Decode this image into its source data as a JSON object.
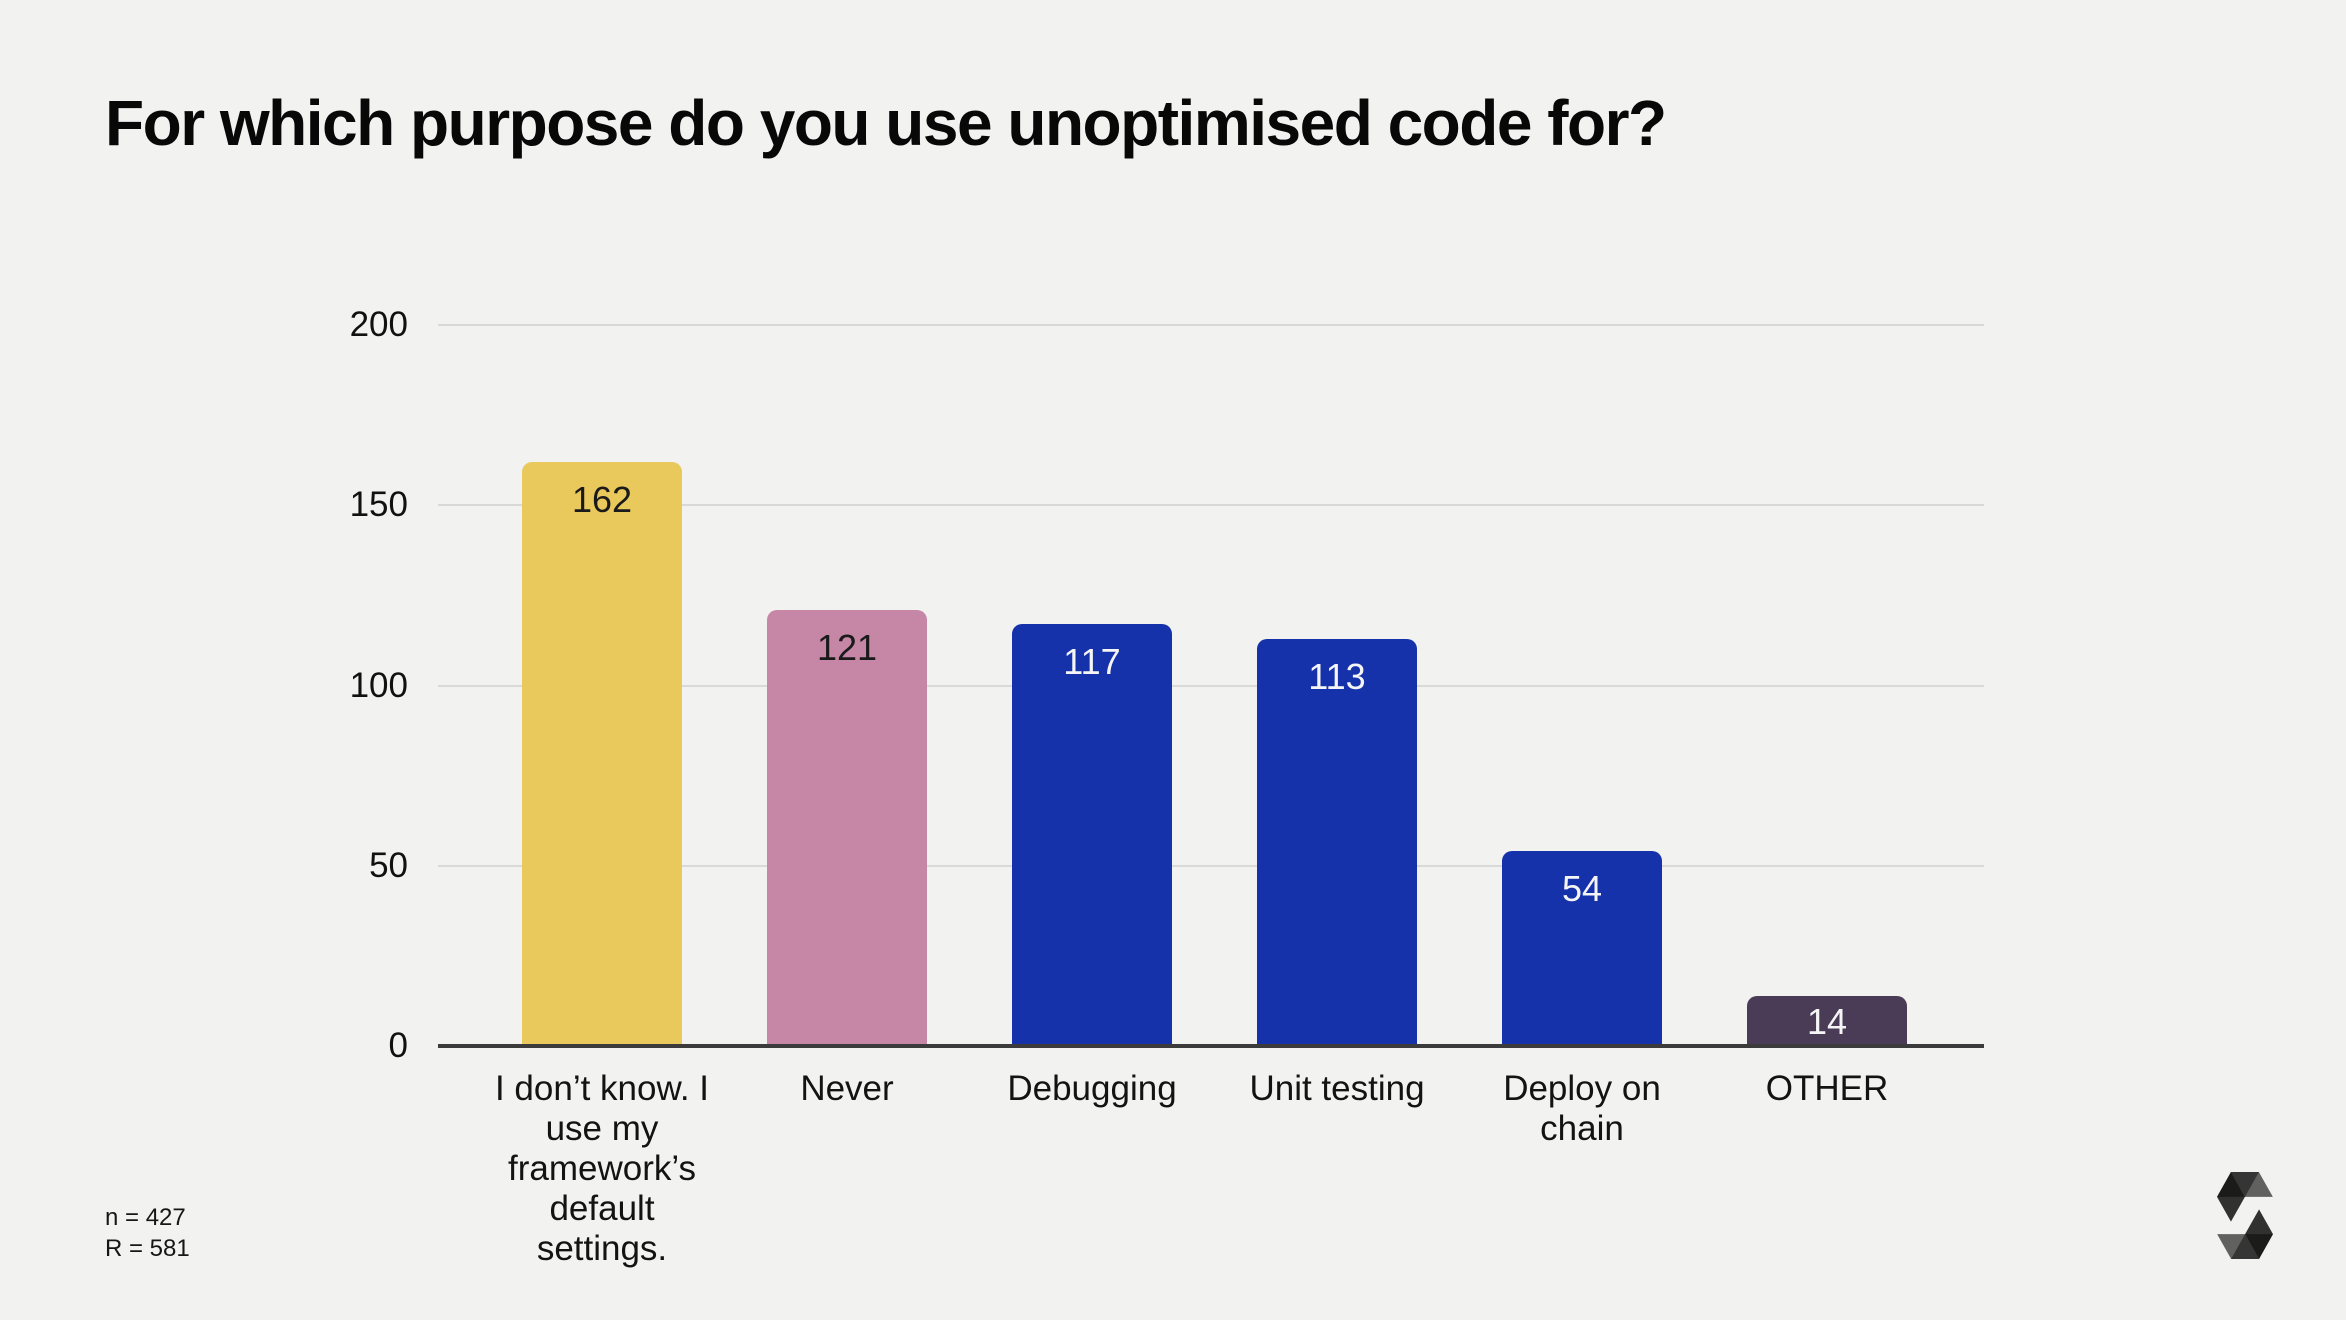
{
  "page": {
    "title": "For which purpose do you use unoptimised code for?",
    "footnote": {
      "line1": "n = 427",
      "line2": "R = 581"
    },
    "logo_name": "solidity-logo"
  },
  "colors": {
    "background": "#f2f2f1",
    "bar_yellow": "#e9c85c",
    "bar_pink": "#c686a6",
    "bar_blue": "#1532ab",
    "bar_purple": "#4a3b57",
    "gridline": "#d9d9d8",
    "axis_line": "#3b3b3b",
    "text": "#111111",
    "value_label_dark": "#1a1a1a",
    "value_label_light": "#f5f5f5"
  },
  "chart_data": {
    "type": "bar",
    "title": "For which purpose do you use unoptimised code for?",
    "categories": [
      "I don’t know. I use my framework’s default settings.",
      "Never",
      "Debugging",
      "Unit testing",
      "Deploy on chain",
      "OTHER"
    ],
    "values": [
      162,
      121,
      117,
      113,
      54,
      14
    ],
    "bar_colors": [
      "#e9c85c",
      "#c686a6",
      "#1532ab",
      "#1532ab",
      "#1532ab",
      "#4a3b57"
    ],
    "value_label_colors": [
      "#1a1a1a",
      "#1a1a1a",
      "#f5f5f5",
      "#f5f5f5",
      "#f5f5f5",
      "#f5f5f5"
    ],
    "xlabel": "",
    "ylabel": "",
    "ylim": [
      0,
      200
    ],
    "yticks": [
      0,
      50,
      100,
      150,
      200
    ],
    "grid": true,
    "legend": false,
    "value_labels_shown": true
  }
}
